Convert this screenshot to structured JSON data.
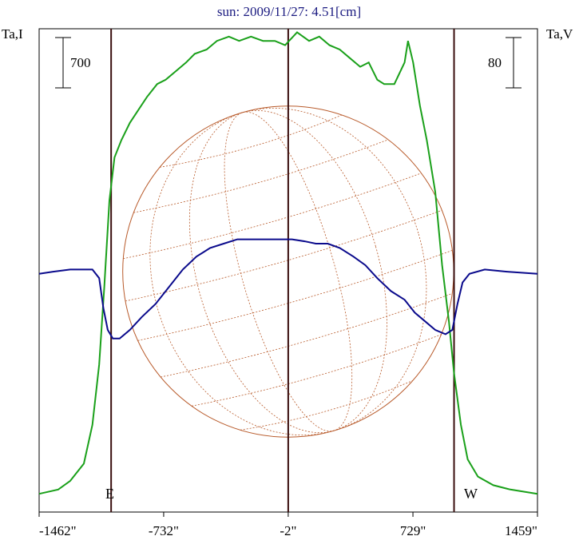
{
  "chart_data": {
    "type": "line",
    "title": "sun: 2009/11/27: 4.51[cm]",
    "left_axis_label": "Ta,I",
    "right_axis_label": "Ta,V",
    "left_scale_label": "700",
    "right_scale_label": "80",
    "limb_labels": {
      "east": "E",
      "west": "W"
    },
    "x_tick_labels": [
      "-1462\"",
      "-732\"",
      "-2\"",
      "729\"",
      "1459\""
    ],
    "x_tick_values": [
      -1462,
      -732,
      -2,
      729,
      1459
    ],
    "xlim": [
      -1462,
      1459
    ],
    "vertical_markers": [
      -1040,
      -2,
      970
    ],
    "solar_disk": {
      "center_x": -2,
      "radius": 970
    },
    "colors": {
      "intensity": "#1aa01a",
      "polarization": "#0a0a8c",
      "title": "#1a1a80",
      "disk": "#b85a2a",
      "markers": "#3a0f0f",
      "axes": "#000000"
    },
    "series": [
      {
        "values": [
          [
            -1462,
            0.02
          ],
          [
            -1350,
            0.03
          ],
          [
            -1280,
            0.05
          ],
          [
            -1200,
            0.09
          ],
          [
            -1150,
            0.18
          ],
          [
            -1110,
            0.32
          ],
          [
            -1080,
            0.5
          ],
          [
            -1050,
            0.7
          ],
          [
            -1020,
            0.8
          ],
          [
            -980,
            0.84
          ],
          [
            -930,
            0.88
          ],
          [
            -880,
            0.91
          ],
          [
            -830,
            0.94
          ],
          [
            -770,
            0.97
          ],
          [
            -720,
            0.98
          ],
          [
            -660,
            1.0
          ],
          [
            -600,
            1.02
          ],
          [
            -550,
            1.04
          ],
          [
            -480,
            1.05
          ],
          [
            -420,
            1.07
          ],
          [
            -350,
            1.08
          ],
          [
            -290,
            1.07
          ],
          [
            -220,
            1.08
          ],
          [
            -150,
            1.07
          ],
          [
            -80,
            1.07
          ],
          [
            -20,
            1.06
          ],
          [
            50,
            1.09
          ],
          [
            120,
            1.07
          ],
          [
            180,
            1.08
          ],
          [
            240,
            1.06
          ],
          [
            300,
            1.05
          ],
          [
            360,
            1.03
          ],
          [
            420,
            1.01
          ],
          [
            470,
            1.02
          ],
          [
            520,
            0.98
          ],
          [
            560,
            0.97
          ],
          [
            620,
            0.97
          ],
          [
            680,
            1.02
          ],
          [
            700,
            1.07
          ],
          [
            730,
            1.02
          ],
          [
            770,
            0.92
          ],
          [
            810,
            0.84
          ],
          [
            860,
            0.72
          ],
          [
            900,
            0.55
          ],
          [
            940,
            0.42
          ],
          [
            970,
            0.3
          ],
          [
            1010,
            0.18
          ],
          [
            1050,
            0.1
          ],
          [
            1110,
            0.06
          ],
          [
            1200,
            0.04
          ],
          [
            1300,
            0.03
          ],
          [
            1459,
            0.02
          ]
        ]
      },
      {
        "values": [
          [
            -1462,
            0.53
          ],
          [
            -1380,
            0.535
          ],
          [
            -1280,
            0.54
          ],
          [
            -1150,
            0.54
          ],
          [
            -1110,
            0.52
          ],
          [
            -1085,
            0.45
          ],
          [
            -1060,
            0.4
          ],
          [
            -1030,
            0.38
          ],
          [
            -990,
            0.38
          ],
          [
            -930,
            0.4
          ],
          [
            -860,
            0.43
          ],
          [
            -780,
            0.46
          ],
          [
            -700,
            0.5
          ],
          [
            -620,
            0.54
          ],
          [
            -540,
            0.57
          ],
          [
            -460,
            0.59
          ],
          [
            -380,
            0.6
          ],
          [
            -300,
            0.61
          ],
          [
            -220,
            0.61
          ],
          [
            -140,
            0.61
          ],
          [
            -60,
            0.61
          ],
          [
            20,
            0.61
          ],
          [
            100,
            0.605
          ],
          [
            160,
            0.6
          ],
          [
            230,
            0.6
          ],
          [
            300,
            0.59
          ],
          [
            380,
            0.57
          ],
          [
            450,
            0.55
          ],
          [
            520,
            0.52
          ],
          [
            600,
            0.49
          ],
          [
            680,
            0.47
          ],
          [
            740,
            0.44
          ],
          [
            800,
            0.42
          ],
          [
            860,
            0.4
          ],
          [
            920,
            0.39
          ],
          [
            960,
            0.4
          ],
          [
            990,
            0.46
          ],
          [
            1020,
            0.51
          ],
          [
            1060,
            0.53
          ],
          [
            1150,
            0.54
          ],
          [
            1280,
            0.535
          ],
          [
            1459,
            0.53
          ]
        ]
      }
    ]
  }
}
